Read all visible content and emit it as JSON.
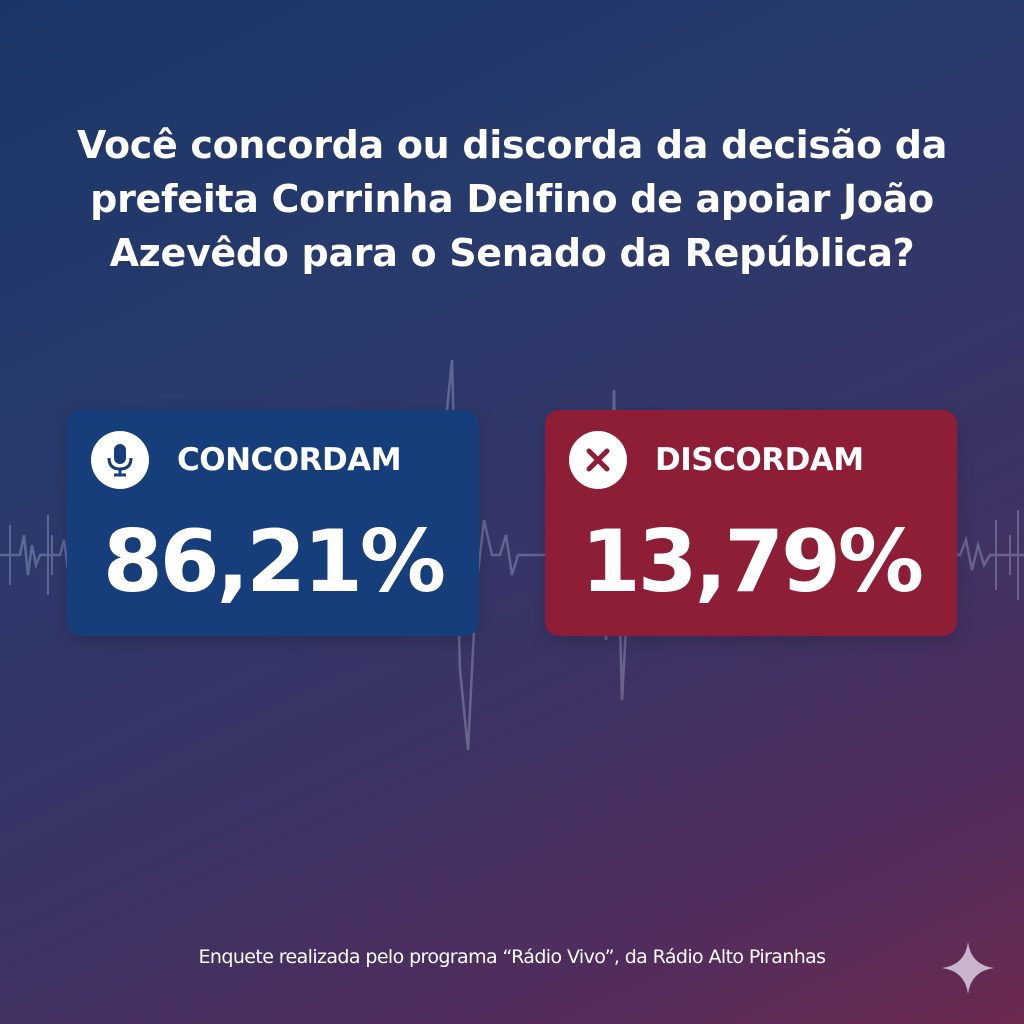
{
  "question": "Você concorda ou discorda da decisão da prefeita Corrinha Delfino de apoiar João Azevêdo para o Senado da República?",
  "results": {
    "agree": {
      "label": "CONCORDAM",
      "percent": "86,21%",
      "icon": "microphone-icon",
      "color": "#163e7a"
    },
    "disagree": {
      "label": "DISCORDAM",
      "percent": "13,79%",
      "icon": "close-icon",
      "color": "#8e1d36"
    }
  },
  "footer": "Enquete realizada pelo programa “Rádio Vivo”, da Rádio Alto Piranhas",
  "decorations": {
    "background_icon": "audio-waveform",
    "corner_icon": "sparkle-icon"
  }
}
